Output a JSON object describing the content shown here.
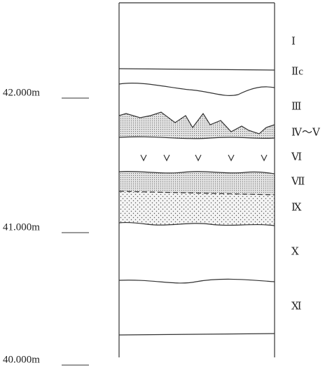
{
  "elevations": [
    "42.000m",
    "41.000m",
    "40.000m"
  ],
  "layers": [
    "Ⅰ",
    "Ⅱc",
    "Ⅲ",
    "Ⅳ～Ⅴ",
    "Ⅵ",
    "Ⅶ",
    "Ⅸ",
    "Ⅹ",
    "Ⅺ"
  ]
}
